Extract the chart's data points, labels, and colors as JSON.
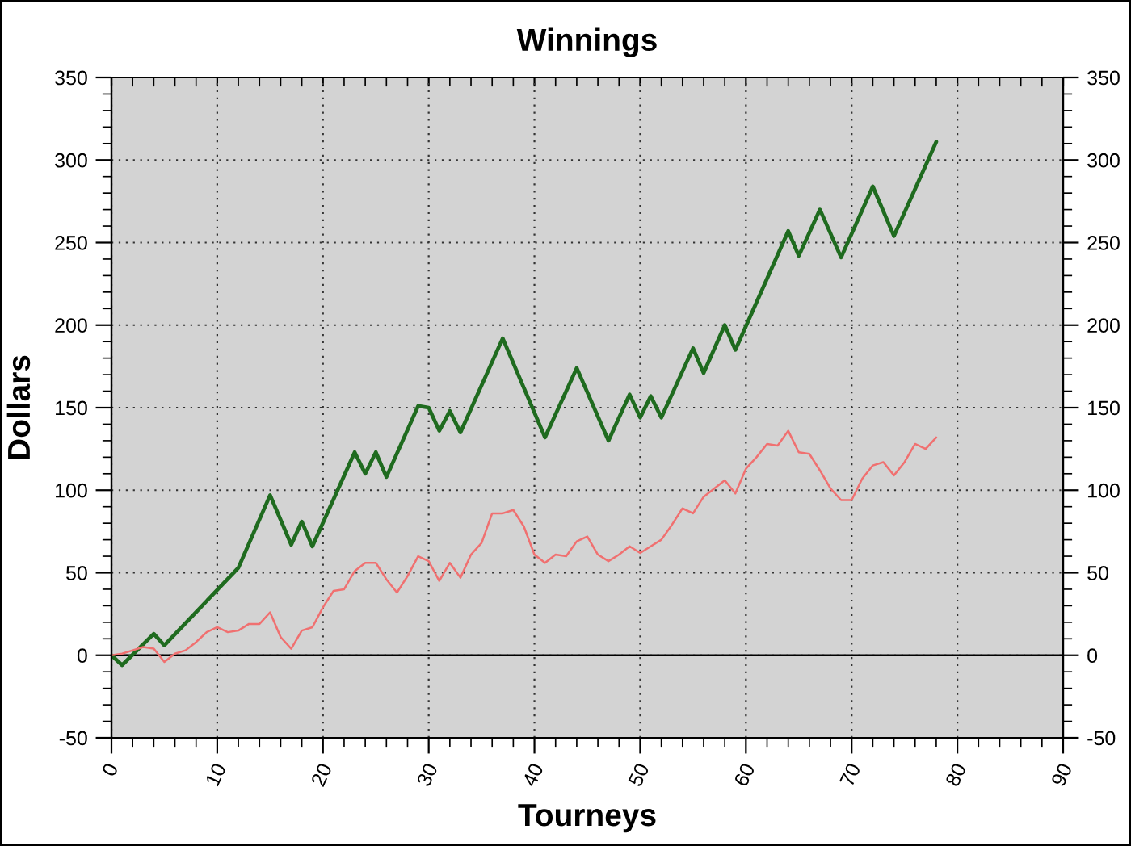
{
  "chart_data": {
    "type": "line",
    "title": "Winnings",
    "xlabel": "Tourneys",
    "ylabel": "Dollars",
    "xlim": [
      0,
      90
    ],
    "xticks": [
      0,
      10,
      20,
      30,
      40,
      50,
      60,
      70,
      80,
      90
    ],
    "ylim": [
      -50,
      350
    ],
    "yticks": [
      -50,
      0,
      50,
      100,
      150,
      200,
      250,
      300,
      350
    ],
    "y2lim": [
      -50,
      350
    ],
    "y2ticks": [
      -50,
      0,
      50,
      100,
      150,
      200,
      250,
      300,
      350
    ],
    "grid": true,
    "ref_lines": [
      {
        "axis": "y",
        "value": 0,
        "color": "#000000"
      }
    ],
    "series": [
      {
        "color": "#1f6b1f",
        "x": [
          0,
          1,
          4,
          5,
          12,
          15,
          17,
          18,
          19,
          23,
          24,
          25,
          26,
          29,
          30,
          31,
          32,
          33,
          37,
          41,
          44,
          47,
          49,
          50,
          51,
          52,
          55,
          56,
          58,
          59,
          64,
          65,
          67,
          69,
          72,
          74,
          78
        ],
        "values": [
          0,
          -6,
          13,
          6,
          53,
          97,
          67,
          81,
          66,
          123,
          110,
          123,
          108,
          151,
          150,
          136,
          148,
          135,
          192,
          132,
          174,
          130,
          158,
          144,
          157,
          144,
          186,
          171,
          200,
          185,
          257,
          242,
          270,
          241,
          284,
          254,
          311
        ]
      },
      {
        "color": "#f07070",
        "x": [
          0,
          1,
          2,
          3,
          4,
          5,
          6,
          7,
          8,
          9,
          10,
          11,
          12,
          13,
          14,
          15,
          16,
          17,
          18,
          19,
          20,
          21,
          22,
          23,
          24,
          25,
          26,
          27,
          28,
          29,
          30,
          31,
          32,
          33,
          34,
          35,
          36,
          37,
          38,
          39,
          40,
          41,
          42,
          43,
          44,
          45,
          46,
          47,
          48,
          49,
          50,
          51,
          52,
          53,
          54,
          55,
          56,
          57,
          58,
          59,
          60,
          61,
          62,
          63,
          64,
          65,
          66,
          67,
          68,
          69,
          70,
          71,
          72,
          73,
          74,
          75,
          76,
          77,
          78
        ],
        "values": [
          0,
          1,
          3,
          5,
          4,
          -4,
          1,
          3,
          8,
          14,
          17,
          14,
          15,
          19,
          19,
          26,
          11,
          4,
          15,
          17,
          29,
          39,
          40,
          51,
          56,
          56,
          46,
          38,
          48,
          60,
          57,
          45,
          56,
          47,
          61,
          68,
          86,
          86,
          88,
          78,
          61,
          56,
          61,
          60,
          69,
          72,
          61,
          57,
          61,
          66,
          62,
          66,
          70,
          79,
          89,
          86,
          96,
          101,
          106,
          98,
          113,
          120,
          128,
          127,
          136,
          123,
          122,
          112,
          101,
          94,
          94,
          107,
          115,
          117,
          109,
          117,
          128,
          125,
          132
        ]
      }
    ]
  }
}
